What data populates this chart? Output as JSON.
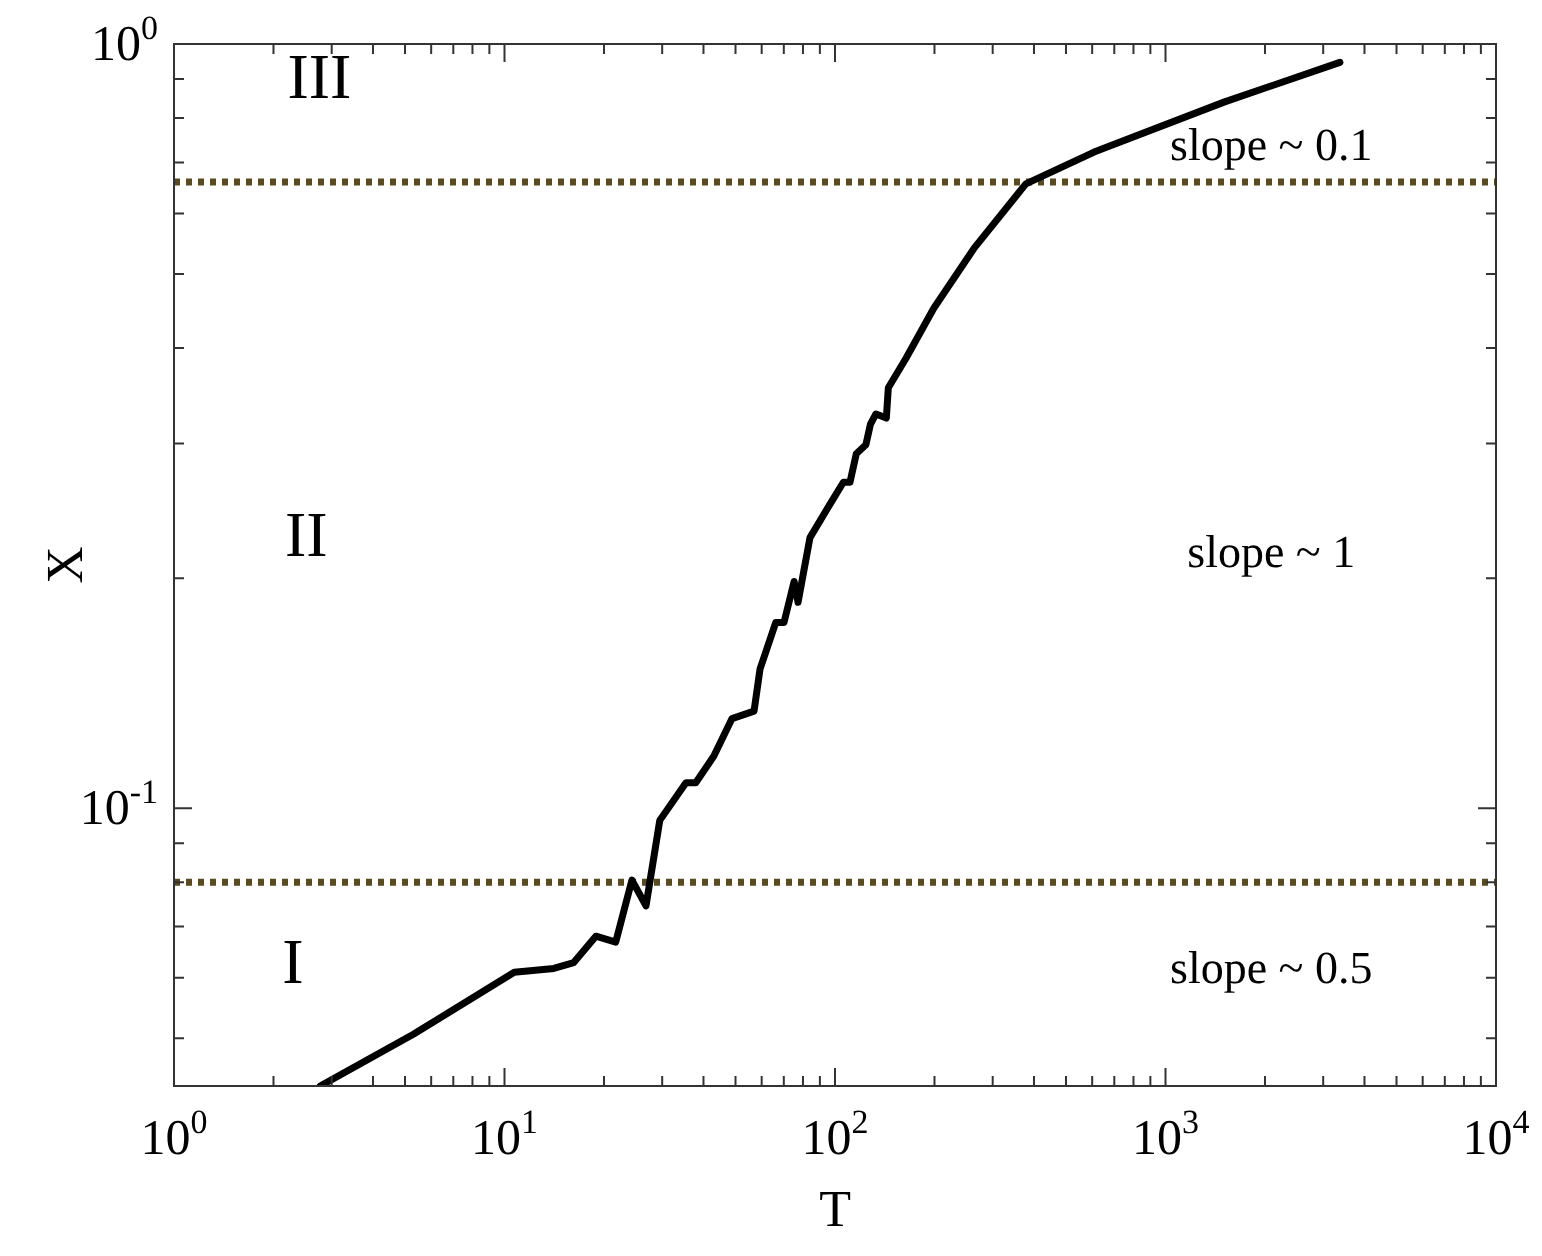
{
  "chart_data": {
    "type": "line",
    "xlabel": "T",
    "ylabel": "X",
    "log": "xy",
    "grid": false,
    "legend": false,
    "marker": "none",
    "line_style": "solid",
    "xlim": [
      1,
      10000
    ],
    "ylim": [
      0.0433,
      1
    ],
    "xticks": [
      {
        "value": 1,
        "label": "10$^{0}$"
      },
      {
        "value": 2,
        "label": null
      },
      {
        "value": 3,
        "label": null
      },
      {
        "value": 4,
        "label": null
      },
      {
        "value": 5,
        "label": null
      },
      {
        "value": 6,
        "label": null
      },
      {
        "value": 7,
        "label": null
      },
      {
        "value": 8,
        "label": null
      },
      {
        "value": 9,
        "label": null
      },
      {
        "value": 10,
        "label": "10$^{1}$"
      },
      {
        "value": 20,
        "label": null
      },
      {
        "value": 30,
        "label": null
      },
      {
        "value": 40,
        "label": null
      },
      {
        "value": 50,
        "label": null
      },
      {
        "value": 60,
        "label": null
      },
      {
        "value": 70,
        "label": null
      },
      {
        "value": 80,
        "label": null
      },
      {
        "value": 90,
        "label": null
      },
      {
        "value": 100,
        "label": "10$^{2}$"
      },
      {
        "value": 200,
        "label": null
      },
      {
        "value": 300,
        "label": null
      },
      {
        "value": 400,
        "label": null
      },
      {
        "value": 500,
        "label": null
      },
      {
        "value": 600,
        "label": null
      },
      {
        "value": 700,
        "label": null
      },
      {
        "value": 800,
        "label": null
      },
      {
        "value": 900,
        "label": null
      },
      {
        "value": 1000,
        "label": "10$^{3}$"
      },
      {
        "value": 2000,
        "label": null
      },
      {
        "value": 3000,
        "label": null
      },
      {
        "value": 4000,
        "label": null
      },
      {
        "value": 5000,
        "label": null
      },
      {
        "value": 6000,
        "label": null
      },
      {
        "value": 7000,
        "label": null
      },
      {
        "value": 8000,
        "label": null
      },
      {
        "value": 9000,
        "label": null
      },
      {
        "value": 10000,
        "label": "10$^{4}$"
      }
    ],
    "yticks": [
      {
        "value": 0.05,
        "label": null
      },
      {
        "value": 0.06,
        "label": null
      },
      {
        "value": 0.07,
        "label": null
      },
      {
        "value": 0.08,
        "label": null
      },
      {
        "value": 0.09,
        "label": null
      },
      {
        "value": 0.1,
        "label": "10$^{-1}$"
      },
      {
        "value": 0.2,
        "label": null
      },
      {
        "value": 0.3,
        "label": null
      },
      {
        "value": 0.4,
        "label": null
      },
      {
        "value": 0.5,
        "label": null
      },
      {
        "value": 0.6,
        "label": null
      },
      {
        "value": 0.7,
        "label": null
      },
      {
        "value": 0.8,
        "label": null
      },
      {
        "value": 0.9,
        "label": null
      },
      {
        "value": 1,
        "label": "10$^{0}$"
      }
    ],
    "series": [
      {
        "color": "#000000",
        "x": [
          2.77,
          5.3,
          10.7,
          14.1,
          16.2,
          18.9,
          21.7,
          24.3,
          26.8,
          29.5,
          35.4,
          37.9,
          43,
          48.8,
          56.9,
          59.3,
          66.2,
          70.1,
          75.2,
          77.3,
          84,
          96.6,
          106,
          111,
          116,
          124,
          128,
          133,
          143,
          145,
          164,
          199,
          264,
          378,
          608,
          1510,
          3370
        ],
        "values": [
          0.0433,
          0.0506,
          0.061,
          0.0617,
          0.0628,
          0.068,
          0.0668,
          0.0805,
          0.0745,
          0.0964,
          0.108,
          0.108,
          0.117,
          0.131,
          0.134,
          0.152,
          0.175,
          0.175,
          0.198,
          0.186,
          0.226,
          0.25,
          0.267,
          0.267,
          0.291,
          0.299,
          0.318,
          0.328,
          0.324,
          0.355,
          0.388,
          0.451,
          0.541,
          0.656,
          0.722,
          0.84,
          0.946
        ]
      }
    ],
    "ref_lines": [
      {
        "axis": "y",
        "value": 0.66,
        "color": "#5a4a1e",
        "line_style": "dotted"
      },
      {
        "axis": "y",
        "value": 0.08,
        "color": "#5a4a1e",
        "line_style": "dotted"
      }
    ],
    "annotations": [
      "III",
      "II",
      "I",
      "slope ~ 0.1",
      "slope ~ 1",
      "slope ~ 0.5"
    ]
  }
}
